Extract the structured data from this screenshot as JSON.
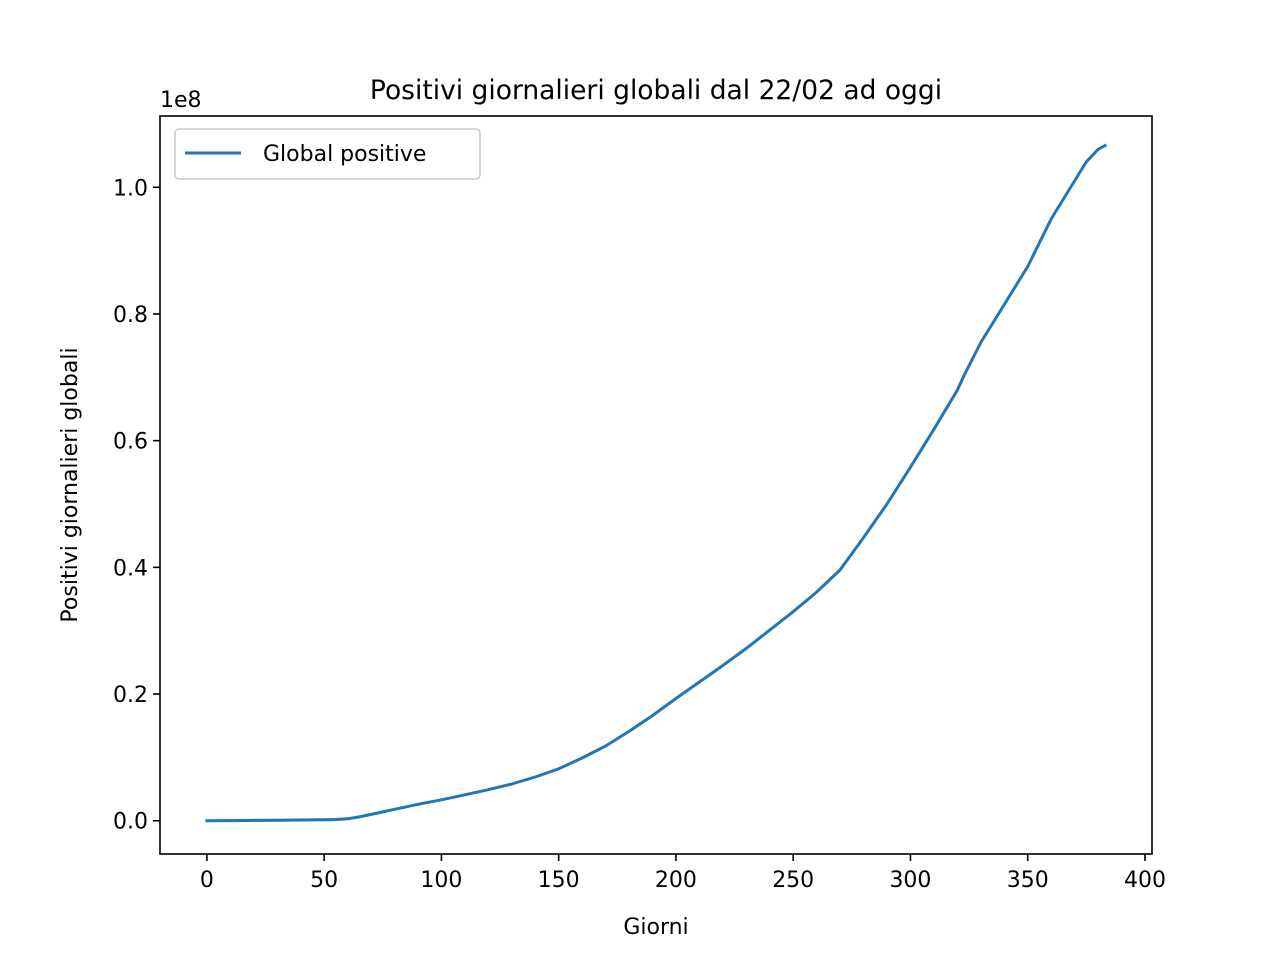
{
  "chart_data": {
    "type": "line",
    "title": "Positivi giornalieri globali dal 22/02 ad oggi",
    "xlabel": "Giorni",
    "ylabel": "Positivi giornalieri globali",
    "y_offset_label": "1e8",
    "xlim": [
      -20,
      403
    ],
    "ylim": [
      -0.0525,
      1.1125
    ],
    "y_scale_note": "values in units of 1e8",
    "x_ticks": [
      0,
      50,
      100,
      150,
      200,
      250,
      300,
      350,
      400
    ],
    "x_tick_labels": [
      "0",
      "50",
      "100",
      "150",
      "200",
      "250",
      "300",
      "350",
      "400"
    ],
    "y_ticks": [
      0.0,
      0.2,
      0.4,
      0.6,
      0.8,
      1.0
    ],
    "y_tick_labels": [
      "0.0",
      "0.2",
      "0.4",
      "0.6",
      "0.8",
      "1.0"
    ],
    "grid": false,
    "legend_position": "upper-left",
    "series": [
      {
        "name": "Global positive",
        "color": "#1f77b4",
        "x": [
          0,
          10,
          20,
          30,
          40,
          50,
          55,
          60,
          65,
          70,
          75,
          80,
          90,
          100,
          110,
          120,
          130,
          140,
          150,
          160,
          170,
          180,
          190,
          200,
          210,
          220,
          230,
          240,
          250,
          260,
          270,
          280,
          290,
          300,
          310,
          320,
          323,
          330,
          340,
          350,
          360,
          370,
          375,
          380,
          383
        ],
        "values": [
          0.0,
          0.0002,
          0.0005,
          0.0009,
          0.0012,
          0.0015,
          0.002,
          0.003,
          0.006,
          0.01,
          0.014,
          0.018,
          0.026,
          0.033,
          0.041,
          0.049,
          0.058,
          0.069,
          0.082,
          0.099,
          0.118,
          0.141,
          0.166,
          0.193,
          0.219,
          0.245,
          0.272,
          0.301,
          0.33,
          0.361,
          0.396,
          0.447,
          0.5,
          0.558,
          0.618,
          0.68,
          0.704,
          0.755,
          0.815,
          0.875,
          0.95,
          1.01,
          1.04,
          1.06,
          1.066
        ]
      }
    ]
  }
}
